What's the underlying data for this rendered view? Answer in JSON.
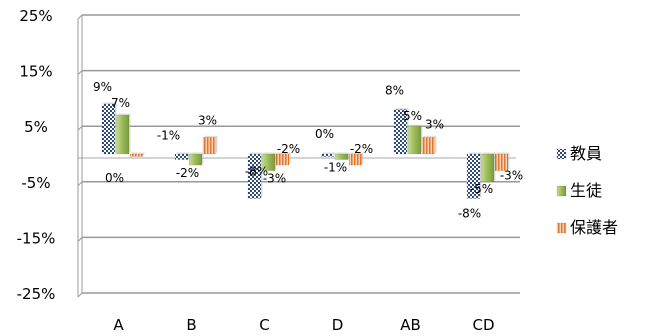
{
  "chart_data": {
    "type": "bar",
    "title": "",
    "xlabel": "",
    "ylabel": "",
    "categories": [
      "A",
      "B",
      "C",
      "D",
      "AB",
      "CD"
    ],
    "ylim": [
      -25,
      25
    ],
    "yticks": [
      25,
      15,
      5,
      -5,
      -15,
      -25
    ],
    "ytick_labels": [
      "25%",
      "15%",
      "5%",
      "-5%",
      "-15%",
      "-25%"
    ],
    "grid": true,
    "legend_position": "right",
    "series": [
      {
        "name": "教員",
        "values": [
          9,
          -1,
          -8,
          0,
          8,
          -8
        ],
        "labels": [
          "9%",
          "-1%",
          "-8%",
          "0%",
          "8%",
          "-8%"
        ],
        "color": "#3a5a8c",
        "pattern": "checker"
      },
      {
        "name": "生徒",
        "values": [
          7,
          -2,
          -3,
          -1,
          5,
          -5
        ],
        "labels": [
          "7%",
          "-2%",
          "-3%",
          "-1%",
          "5%",
          "-5%"
        ],
        "color": "#9bbb59",
        "pattern": "solid"
      },
      {
        "name": "保護者",
        "values": [
          0,
          3,
          -2,
          -2,
          3,
          -3
        ],
        "labels": [
          "0%",
          "3%",
          "-2%",
          "-2%",
          "3%",
          "-3%"
        ],
        "color": "#e8874a",
        "pattern": "vstripe"
      }
    ]
  }
}
